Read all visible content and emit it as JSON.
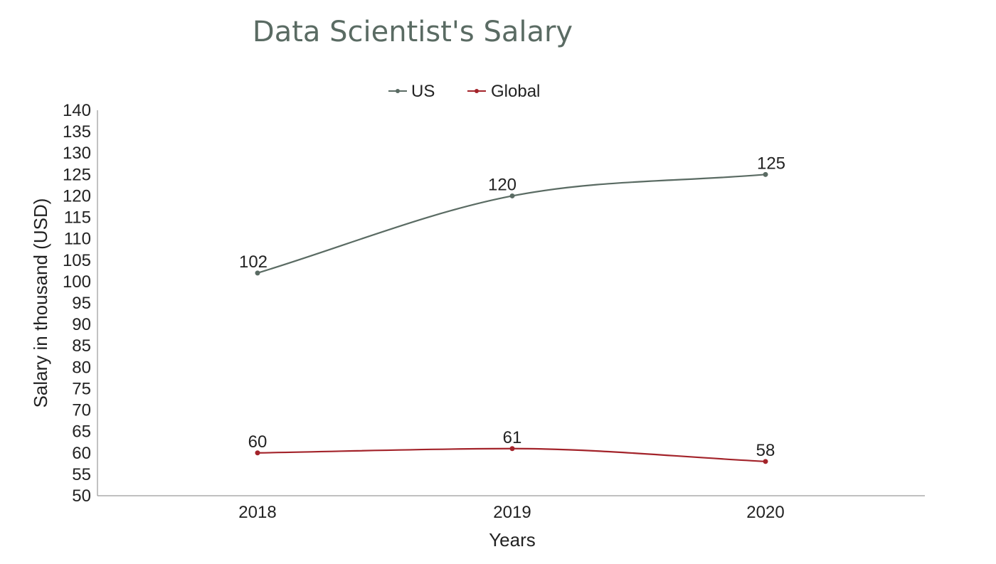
{
  "chart_data": {
    "type": "line",
    "title": "Data Scientist's Salary",
    "xlabel": "Years",
    "ylabel": "Salary in thousand (USD)",
    "categories": [
      "2018",
      "2019",
      "2020"
    ],
    "ylim": [
      50,
      140
    ],
    "ytick_step": 5,
    "grid": false,
    "legend_position": "top-center",
    "smooth": true,
    "series": [
      {
        "name": "US",
        "values": [
          102,
          120,
          125
        ],
        "color": "#5a6b63"
      },
      {
        "name": "Global",
        "values": [
          60,
          61,
          58
        ],
        "color": "#a3232a"
      }
    ]
  }
}
